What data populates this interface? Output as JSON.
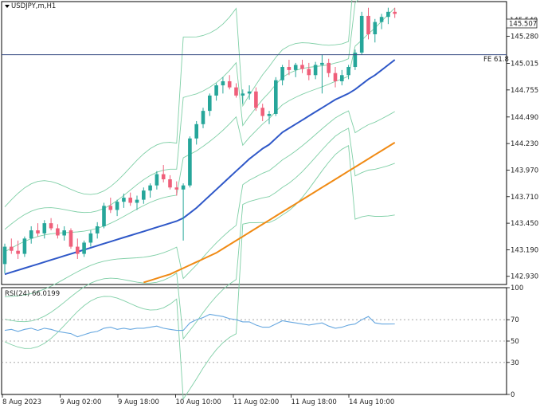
{
  "title": "USDJPY,m,H1",
  "colors": {
    "bull": "#26a69a",
    "bear": "#ef5f7a",
    "ma_fast": "#2f58c8",
    "ma_slow": "#f08a14",
    "bands": "#7fcfa6",
    "rsi": "#68a8e0",
    "fe_line": "#3b4f86",
    "price_tag_bg": "#ffffff"
  },
  "current_price": "145.507",
  "price_axis_top_label": "145.540",
  "fe_label": "FE 61.8",
  "price_axis_labels": [
    "145.280",
    "145.015",
    "144.755",
    "144.490",
    "144.230",
    "143.970",
    "143.710",
    "143.450",
    "143.190",
    "142.930"
  ],
  "rsi_title": "RSI(24) 66.0199",
  "rsi_axis_labels": [
    "100",
    "70",
    "50",
    "30",
    "0"
  ],
  "time_labels": [
    "8 Aug 2023",
    "9 Aug 02:00",
    "9 Aug 18:00",
    "10 Aug 10:00",
    "11 Aug 02:00",
    "11 Aug 18:00",
    "14 Aug 10:00"
  ],
  "chart_data": {
    "type": "candlestick",
    "symbol": "USDJPY,m",
    "timeframe": "H1",
    "ylim": [
      142.85,
      145.62
    ],
    "fe_level": 145.1,
    "candles": [
      [
        143.05,
        143.25,
        142.96,
        143.22
      ],
      [
        143.22,
        143.3,
        143.15,
        143.18
      ],
      [
        143.18,
        143.28,
        143.1,
        143.15
      ],
      [
        143.15,
        143.32,
        143.12,
        143.3
      ],
      [
        143.3,
        143.42,
        143.25,
        143.38
      ],
      [
        143.38,
        143.45,
        143.32,
        143.35
      ],
      [
        143.35,
        143.48,
        143.3,
        143.45
      ],
      [
        143.45,
        143.5,
        143.38,
        143.4
      ],
      [
        143.4,
        143.44,
        143.3,
        143.33
      ],
      [
        143.33,
        143.42,
        143.28,
        143.38
      ],
      [
        143.38,
        143.4,
        143.2,
        143.22
      ],
      [
        143.22,
        143.3,
        143.1,
        143.15
      ],
      [
        143.15,
        143.28,
        143.12,
        143.26
      ],
      [
        143.26,
        143.38,
        143.22,
        143.35
      ],
      [
        143.35,
        143.46,
        143.3,
        143.42
      ],
      [
        143.42,
        143.65,
        143.4,
        143.62
      ],
      [
        143.62,
        143.7,
        143.55,
        143.58
      ],
      [
        143.58,
        143.68,
        143.52,
        143.66
      ],
      [
        143.66,
        143.74,
        143.6,
        143.7
      ],
      [
        143.7,
        143.75,
        143.62,
        143.65
      ],
      [
        143.65,
        143.72,
        143.58,
        143.68
      ],
      [
        143.68,
        143.8,
        143.64,
        143.77
      ],
      [
        143.77,
        143.84,
        143.7,
        143.82
      ],
      [
        143.82,
        143.96,
        143.78,
        143.93
      ],
      [
        143.93,
        144.02,
        143.85,
        143.88
      ],
      [
        143.88,
        143.92,
        143.78,
        143.8
      ],
      [
        143.8,
        143.86,
        143.72,
        143.78
      ],
      [
        143.78,
        143.84,
        143.28,
        143.82
      ],
      [
        143.82,
        144.3,
        143.8,
        144.28
      ],
      [
        144.28,
        144.45,
        144.22,
        144.42
      ],
      [
        144.42,
        144.58,
        144.38,
        144.55
      ],
      [
        144.55,
        144.72,
        144.5,
        144.7
      ],
      [
        144.7,
        144.82,
        144.65,
        144.8
      ],
      [
        144.8,
        144.88,
        144.72,
        144.84
      ],
      [
        144.84,
        144.9,
        144.76,
        144.78
      ],
      [
        144.78,
        144.82,
        144.68,
        144.7
      ],
      [
        144.7,
        144.76,
        144.62,
        144.72
      ],
      [
        144.72,
        144.8,
        144.66,
        144.74
      ],
      [
        144.74,
        144.78,
        144.55,
        144.58
      ],
      [
        144.58,
        144.62,
        144.45,
        144.5
      ],
      [
        144.5,
        144.55,
        144.42,
        144.52
      ],
      [
        144.52,
        144.88,
        144.5,
        144.85
      ],
      [
        144.85,
        145.0,
        144.8,
        144.98
      ],
      [
        144.98,
        145.05,
        144.9,
        144.95
      ],
      [
        144.95,
        145.02,
        144.88,
        145.0
      ],
      [
        145.0,
        145.05,
        144.92,
        144.96
      ],
      [
        144.96,
        145.02,
        144.85,
        144.9
      ],
      [
        144.9,
        145.03,
        144.86,
        145.0
      ],
      [
        145.0,
        145.1,
        144.72,
        145.02
      ],
      [
        145.02,
        145.06,
        144.88,
        144.92
      ],
      [
        144.92,
        144.98,
        144.78,
        144.84
      ],
      [
        144.84,
        144.95,
        144.8,
        144.9
      ],
      [
        144.9,
        145.0,
        144.86,
        144.98
      ],
      [
        144.98,
        145.15,
        144.95,
        145.12
      ],
      [
        145.12,
        145.52,
        145.1,
        145.48
      ],
      [
        145.48,
        145.56,
        145.25,
        145.3
      ],
      [
        145.3,
        145.45,
        145.22,
        145.42
      ],
      [
        145.42,
        145.5,
        145.35,
        145.47
      ],
      [
        145.47,
        145.56,
        145.4,
        145.52
      ],
      [
        145.52,
        145.56,
        145.46,
        145.5
      ]
    ],
    "ma_fast": [
      142.95,
      142.97,
      142.99,
      143.01,
      143.03,
      143.05,
      143.07,
      143.09,
      143.11,
      143.13,
      143.15,
      143.17,
      143.19,
      143.21,
      143.23,
      143.25,
      143.27,
      143.29,
      143.31,
      143.33,
      143.35,
      143.37,
      143.39,
      143.41,
      143.43,
      143.45,
      143.47,
      143.5,
      143.55,
      143.6,
      143.66,
      143.72,
      143.78,
      143.84,
      143.9,
      143.96,
      144.02,
      144.08,
      144.13,
      144.18,
      144.22,
      144.28,
      144.34,
      144.38,
      144.42,
      144.46,
      144.5,
      144.54,
      144.58,
      144.62,
      144.66,
      144.69,
      144.72,
      144.76,
      144.81,
      144.86,
      144.9,
      144.95,
      145.0,
      145.05
    ],
    "ma_slow": [
      null,
      null,
      null,
      null,
      null,
      null,
      null,
      null,
      null,
      null,
      null,
      null,
      null,
      null,
      null,
      null,
      null,
      null,
      null,
      null,
      null,
      142.87,
      142.89,
      142.91,
      142.93,
      142.95,
      142.98,
      143.01,
      143.04,
      143.07,
      143.1,
      143.13,
      143.16,
      143.2,
      143.24,
      143.28,
      143.32,
      143.36,
      143.4,
      143.44,
      143.48,
      143.52,
      143.56,
      143.6,
      143.64,
      143.68,
      143.72,
      143.76,
      143.8,
      143.84,
      143.88,
      143.92,
      143.96,
      144.0,
      144.04,
      144.08,
      144.12,
      144.16,
      144.2,
      144.24
    ],
    "rsi": [
      60,
      61,
      59,
      61,
      62,
      60,
      62,
      61,
      59,
      58,
      57,
      54,
      56,
      58,
      59,
      62,
      63,
      61,
      62,
      61,
      62,
      62,
      63,
      64,
      62,
      61,
      60,
      60,
      67,
      70,
      72,
      75,
      74,
      73,
      71,
      70,
      68,
      68,
      65,
      63,
      63,
      66,
      69,
      68,
      67,
      66,
      65,
      66,
      67,
      64,
      62,
      63,
      65,
      66,
      70,
      73,
      67,
      66,
      66,
      66.02
    ],
    "rsi_levels": [
      70,
      50,
      30
    ],
    "rsi_ylim": [
      0,
      100
    ]
  }
}
